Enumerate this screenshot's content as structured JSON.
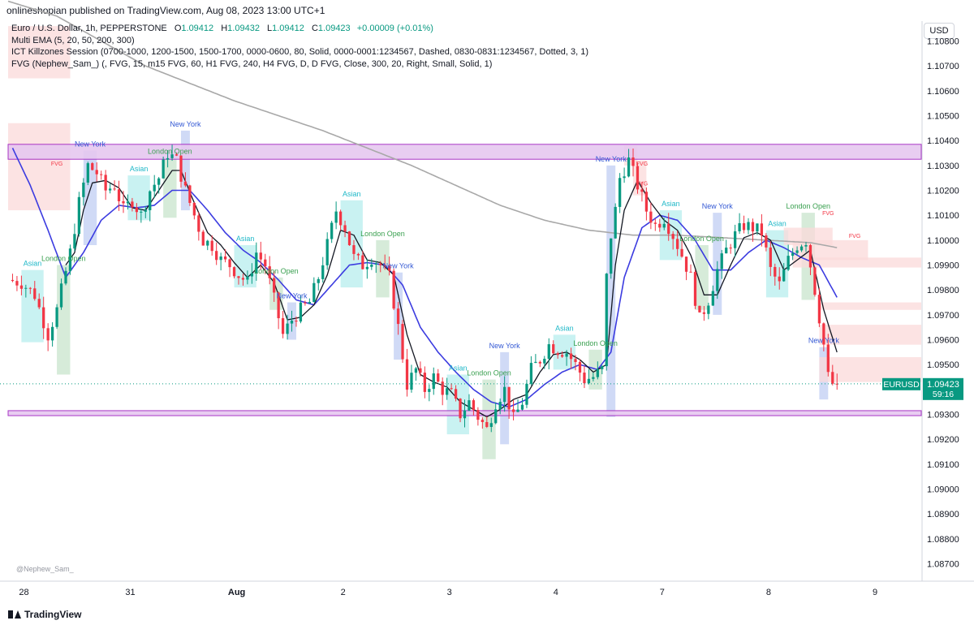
{
  "header": {
    "publisher": "onlineshopian published on TradingView.com, Aug 08, 2023 13:00 UTC+1",
    "currency": "USD"
  },
  "legend": {
    "symbol": "Euro / U.S. Dollar, 1h, PEPPERSTONE",
    "ohlc": [
      {
        "label": "O",
        "value": "1.09412"
      },
      {
        "label": "H",
        "value": "1.09432"
      },
      {
        "label": "L",
        "value": "1.09412"
      },
      {
        "label": "C",
        "value": "1.09423"
      }
    ],
    "change": "+0.00009 (+0.01%)",
    "indicators": [
      "Multi EMA (5, 20, 50, 200, 300)",
      "ICT Killzones Session (0700-1000, 1200-1500, 1500-1700, 0000-0600, 80, Solid, 0000-0001:1234567, Dashed, 0830-0831:1234567, Dotted, 3, 1)",
      "FVG (Nephew_Sam_) (, FVG, 15, m15 FVG, 60, H1 FVG, 240, H4 FVG, D, D FVG, Close, 300, 20, Right, Small, Solid, 1)"
    ]
  },
  "price_label": {
    "symbol": "EURUSD",
    "price": "1.09423",
    "countdown": "59:16"
  },
  "footer": {
    "brand": "TradingView",
    "watermark": "@Nephew_Sam_"
  },
  "colors": {
    "up": "#089981",
    "down": "#f23645",
    "ema_fast": "#131722",
    "ema_slow": "#3c3ce0",
    "ema_long": "#a8a8a8",
    "asian": "#bff0f0",
    "london": "#cfe8d2",
    "newyork": "#c8d4f5",
    "fvg": "#fbdada",
    "zone": "#e6c8f0",
    "zone_border": "#a020c0"
  },
  "chart_data": {
    "type": "candlestick",
    "symbol": "EURUSD",
    "timeframe": "1h",
    "y_axis": {
      "ticks": [
        "1.10800",
        "1.10700",
        "1.10600",
        "1.10500",
        "1.10400",
        "1.10300",
        "1.10200",
        "1.10100",
        "1.10000",
        "1.09900",
        "1.09800",
        "1.09700",
        "1.09600",
        "1.09500",
        "1.09400",
        "1.09300",
        "1.09200",
        "1.09100",
        "1.09000",
        "1.08900",
        "1.08800",
        "1.08700"
      ],
      "range": [
        1.0863,
        1.1088
      ]
    },
    "x_axis": {
      "ticks": [
        {
          "label": "28",
          "x": 0
        },
        {
          "label": "31",
          "x": 24
        },
        {
          "label": "Aug",
          "x": 48
        },
        {
          "label": "2",
          "x": 72
        },
        {
          "label": "3",
          "x": 96
        },
        {
          "label": "4",
          "x": 120
        },
        {
          "label": "7",
          "x": 144
        },
        {
          "label": "8",
          "x": 168
        },
        {
          "label": "9",
          "x": 192
        }
      ],
      "range": [
        -1,
        205
      ]
    },
    "path_keys": [
      [
        0,
        1.0984
      ],
      [
        3,
        1.0983
      ],
      [
        6,
        1.0978
      ],
      [
        9,
        1.0962
      ],
      [
        11,
        1.0972
      ],
      [
        14,
        1.0995
      ],
      [
        16,
        1.1015
      ],
      [
        18,
        1.103
      ],
      [
        20,
        1.1027
      ],
      [
        22,
        1.102
      ],
      [
        24,
        1.1022
      ],
      [
        26,
        1.1012
      ],
      [
        28,
        1.1016
      ],
      [
        30,
        1.101
      ],
      [
        32,
        1.102
      ],
      [
        34,
        1.1025
      ],
      [
        36,
        1.1035
      ],
      [
        38,
        1.1032
      ],
      [
        40,
        1.102
      ],
      [
        42,
        1.101
      ],
      [
        44,
        1.1
      ],
      [
        46,
        1.0998
      ],
      [
        48,
        1.0992
      ],
      [
        50,
        1.099
      ],
      [
        52,
        1.0986
      ],
      [
        54,
        1.0983
      ],
      [
        56,
        1.0995
      ],
      [
        58,
        1.099
      ],
      [
        60,
        1.0976
      ],
      [
        62,
        1.0962
      ],
      [
        64,
        1.0968
      ],
      [
        66,
        1.0972
      ],
      [
        68,
        1.0975
      ],
      [
        70,
        1.0985
      ],
      [
        72,
        1.0998
      ],
      [
        74,
        1.1012
      ],
      [
        76,
        1.1005
      ],
      [
        78,
        1.0993
      ],
      [
        80,
        1.099
      ],
      [
        82,
        1.0993
      ],
      [
        84,
        1.099
      ],
      [
        86,
        1.0985
      ],
      [
        88,
        1.0965
      ],
      [
        90,
        1.0942
      ],
      [
        92,
        1.0948
      ],
      [
        94,
        1.094
      ],
      [
        96,
        1.0945
      ],
      [
        98,
        1.094
      ],
      [
        100,
        1.0938
      ],
      [
        102,
        1.093
      ],
      [
        104,
        1.0935
      ],
      [
        106,
        1.0929
      ],
      [
        108,
        1.0924
      ],
      [
        110,
        1.0935
      ],
      [
        112,
        1.094
      ],
      [
        114,
        1.0928
      ],
      [
        116,
        1.0935
      ],
      [
        118,
        1.0948
      ],
      [
        120,
        1.0952
      ],
      [
        122,
        1.0958
      ],
      [
        124,
        1.0956
      ],
      [
        126,
        1.0955
      ],
      [
        128,
        1.095
      ],
      [
        130,
        1.0944
      ],
      [
        132,
        1.0945
      ],
      [
        134,
        1.0948
      ],
      [
        135,
        1.0985
      ],
      [
        136,
        1.1002
      ],
      [
        137,
        1.1012
      ],
      [
        138,
        1.1025
      ],
      [
        140,
        1.1032
      ],
      [
        142,
        1.1022
      ],
      [
        144,
        1.1012
      ],
      [
        146,
        1.1006
      ],
      [
        148,
        1.1009
      ],
      [
        150,
        1.1002
      ],
      [
        152,
        1.0994
      ],
      [
        154,
        1.0985
      ],
      [
        156,
        1.0968
      ],
      [
        158,
        1.0976
      ],
      [
        160,
        1.0988
      ],
      [
        162,
        1.0996
      ],
      [
        164,
        1.1002
      ],
      [
        166,
        1.1006
      ],
      [
        168,
        1.1005
      ],
      [
        170,
        1.1003
      ],
      [
        172,
        1.0988
      ],
      [
        174,
        1.0982
      ],
      [
        176,
        1.0992
      ],
      [
        178,
        1.0998
      ],
      [
        180,
        1.1
      ],
      [
        182,
        1.098
      ],
      [
        184,
        1.0958
      ],
      [
        185,
        1.0945
      ],
      [
        186,
        1.09423
      ]
    ],
    "ema_fast_keys": [
      [
        12,
        1.099
      ],
      [
        14,
        1.0995
      ],
      [
        16,
        1.1012
      ],
      [
        18,
        1.1023
      ],
      [
        21,
        1.1024
      ],
      [
        24,
        1.1021
      ],
      [
        27,
        1.1013
      ],
      [
        30,
        1.1012
      ],
      [
        33,
        1.102
      ],
      [
        36,
        1.1028
      ],
      [
        38,
        1.1028
      ],
      [
        41,
        1.1015
      ],
      [
        44,
        1.1003
      ],
      [
        47,
        1.0998
      ],
      [
        50,
        1.0991
      ],
      [
        53,
        1.0985
      ],
      [
        56,
        1.099
      ],
      [
        59,
        1.0983
      ],
      [
        62,
        1.0968
      ],
      [
        65,
        1.0969
      ],
      [
        68,
        1.0974
      ],
      [
        71,
        1.0986
      ],
      [
        74,
        1.1004
      ],
      [
        77,
        1.1002
      ],
      [
        80,
        1.0992
      ],
      [
        83,
        1.0991
      ],
      [
        86,
        1.0986
      ],
      [
        89,
        1.0962
      ],
      [
        92,
        1.0946
      ],
      [
        95,
        1.0943
      ],
      [
        98,
        1.0941
      ],
      [
        101,
        1.0935
      ],
      [
        104,
        1.0932
      ],
      [
        107,
        1.0929
      ],
      [
        110,
        1.0932
      ],
      [
        113,
        1.0936
      ],
      [
        116,
        1.0938
      ],
      [
        119,
        1.0947
      ],
      [
        122,
        1.0954
      ],
      [
        125,
        1.0955
      ],
      [
        128,
        1.0952
      ],
      [
        131,
        1.0947
      ],
      [
        134,
        1.095
      ],
      [
        136,
        1.099
      ],
      [
        138,
        1.1012
      ],
      [
        141,
        1.1024
      ],
      [
        144,
        1.1015
      ],
      [
        147,
        1.1008
      ],
      [
        150,
        1.1004
      ],
      [
        153,
        1.0994
      ],
      [
        156,
        1.0978
      ],
      [
        159,
        1.0978
      ],
      [
        162,
        1.099
      ],
      [
        165,
        1.1001
      ],
      [
        168,
        1.1003
      ],
      [
        171,
        1.1
      ],
      [
        174,
        1.0988
      ],
      [
        177,
        1.0992
      ],
      [
        180,
        1.0996
      ],
      [
        183,
        1.0972
      ],
      [
        186,
        1.0955
      ]
    ],
    "ema_slow_keys": [
      [
        0,
        1.1037
      ],
      [
        4,
        1.1022
      ],
      [
        8,
        1.1004
      ],
      [
        12,
        1.0985
      ],
      [
        16,
        1.0995
      ],
      [
        20,
        1.1008
      ],
      [
        24,
        1.1014
      ],
      [
        28,
        1.1013
      ],
      [
        32,
        1.1014
      ],
      [
        36,
        1.102
      ],
      [
        40,
        1.102
      ],
      [
        44,
        1.1012
      ],
      [
        48,
        1.1003
      ],
      [
        52,
        1.0996
      ],
      [
        56,
        1.0991
      ],
      [
        60,
        1.0984
      ],
      [
        64,
        1.0976
      ],
      [
        68,
        1.0974
      ],
      [
        72,
        1.0982
      ],
      [
        76,
        1.099
      ],
      [
        80,
        1.0991
      ],
      [
        84,
        1.099
      ],
      [
        88,
        1.0982
      ],
      [
        92,
        1.0965
      ],
      [
        96,
        1.0955
      ],
      [
        100,
        1.0947
      ],
      [
        104,
        1.094
      ],
      [
        108,
        1.0935
      ],
      [
        112,
        1.0933
      ],
      [
        116,
        1.0936
      ],
      [
        120,
        1.0942
      ],
      [
        124,
        1.0947
      ],
      [
        128,
        1.095
      ],
      [
        132,
        1.0948
      ],
      [
        135,
        1.0955
      ],
      [
        138,
        1.0985
      ],
      [
        142,
        1.1005
      ],
      [
        146,
        1.101
      ],
      [
        150,
        1.1008
      ],
      [
        154,
        1.1
      ],
      [
        158,
        1.0988
      ],
      [
        162,
        1.0988
      ],
      [
        166,
        1.0995
      ],
      [
        170,
        1.1
      ],
      [
        174,
        1.0997
      ],
      [
        178,
        1.0993
      ],
      [
        182,
        1.099
      ],
      [
        186,
        1.0977
      ]
    ],
    "ema_long_keys": [
      [
        -1,
        1.1096
      ],
      [
        10,
        1.109
      ],
      [
        20,
        1.108
      ],
      [
        30,
        1.107
      ],
      [
        40,
        1.1063
      ],
      [
        50,
        1.1056
      ],
      [
        60,
        1.105
      ],
      [
        70,
        1.1044
      ],
      [
        80,
        1.1037
      ],
      [
        90,
        1.103
      ],
      [
        100,
        1.1022
      ],
      [
        110,
        1.1014
      ],
      [
        120,
        1.1008
      ],
      [
        130,
        1.1004
      ],
      [
        140,
        1.1002
      ],
      [
        150,
        1.1002
      ],
      [
        160,
        1.1001
      ],
      [
        170,
        1.1
      ],
      [
        180,
        1.0999
      ],
      [
        186,
        1.0997
      ]
    ],
    "zones": [
      {
        "y_top": 1.10385,
        "y_bottom": 1.10325
      },
      {
        "y_top": 1.09315,
        "y_bottom": 1.09295
      }
    ],
    "fvg_boxes": [
      {
        "x1": -1,
        "x2": 13,
        "y_top": 1.1086,
        "y_bottom": 1.1065
      },
      {
        "x1": -1,
        "x2": 13,
        "y_top": 1.1047,
        "y_bottom": 1.1012
      },
      {
        "x1": 138,
        "x2": 141,
        "y_top": 1.1038,
        "y_bottom": 1.103
      },
      {
        "x1": 140,
        "x2": 143,
        "y_top": 1.1032,
        "y_bottom": 1.1018
      },
      {
        "x1": 174,
        "x2": 185,
        "y_top": 1.1005,
        "y_bottom": 1.0998
      },
      {
        "x1": 176,
        "x2": 193,
        "y_top": 1.1,
        "y_bottom": 1.0992
      },
      {
        "x1": 176,
        "x2": 205,
        "y_top": 1.0993,
        "y_bottom": 1.0989
      },
      {
        "x1": 182,
        "x2": 205,
        "y_top": 1.0975,
        "y_bottom": 1.0972
      },
      {
        "x1": 182,
        "x2": 205,
        "y_top": 1.0966,
        "y_bottom": 1.0958
      },
      {
        "x1": 182,
        "x2": 205,
        "y_top": 1.0953,
        "y_bottom": 1.0943
      }
    ],
    "sessions": [
      {
        "type": "asian",
        "name": "Asian",
        "x1": 2,
        "x2": 7,
        "y_top": 1.0988,
        "y_bottom": 1.0959
      },
      {
        "type": "london",
        "name": "London Open",
        "x1": 10,
        "x2": 13,
        "y_top": 1.099,
        "y_bottom": 1.0946
      },
      {
        "type": "newyork",
        "name": "New York",
        "x1": 16,
        "x2": 19,
        "y_top": 1.1036,
        "y_bottom": 1.0998
      },
      {
        "type": "asian",
        "name": "Asian",
        "x1": 26,
        "x2": 31,
        "y_top": 1.1026,
        "y_bottom": 1.1008
      },
      {
        "type": "london",
        "name": "London Open",
        "x1": 34,
        "x2": 37,
        "y_top": 1.1033,
        "y_bottom": 1.1009
      },
      {
        "type": "newyork",
        "name": "New York",
        "x1": 38,
        "x2": 40,
        "y_top": 1.1044,
        "y_bottom": 1.1012
      },
      {
        "type": "asian",
        "name": "Asian",
        "x1": 50,
        "x2": 55,
        "y_top": 1.0998,
        "y_bottom": 1.0981
      },
      {
        "type": "london",
        "name": "London Open",
        "x1": 58,
        "x2": 61,
        "y_top": 1.0985,
        "y_bottom": 1.0972
      },
      {
        "type": "newyork",
        "name": "New York",
        "x1": 62,
        "x2": 64,
        "y_top": 1.0975,
        "y_bottom": 1.096
      },
      {
        "type": "asian",
        "name": "Asian",
        "x1": 74,
        "x2": 79,
        "y_top": 1.1016,
        "y_bottom": 1.0981
      },
      {
        "type": "london",
        "name": "London Open",
        "x1": 82,
        "x2": 85,
        "y_top": 1.1,
        "y_bottom": 1.0977
      },
      {
        "type": "newyork",
        "name": "New York",
        "x1": 86,
        "x2": 88,
        "y_top": 1.0987,
        "y_bottom": 1.0952
      },
      {
        "type": "asian",
        "name": "Asian",
        "x1": 98,
        "x2": 103,
        "y_top": 1.0946,
        "y_bottom": 1.0922
      },
      {
        "type": "london",
        "name": "London Open",
        "x1": 106,
        "x2": 109,
        "y_top": 1.0944,
        "y_bottom": 1.0912
      },
      {
        "type": "newyork",
        "name": "New York",
        "x1": 110,
        "x2": 112,
        "y_top": 1.0955,
        "y_bottom": 1.0918
      },
      {
        "type": "asian",
        "name": "Asian",
        "x1": 122,
        "x2": 127,
        "y_top": 1.0962,
        "y_bottom": 1.0948
      },
      {
        "type": "london",
        "name": "London Open",
        "x1": 130,
        "x2": 133,
        "y_top": 1.0956,
        "y_bottom": 1.094
      },
      {
        "type": "newyork",
        "name": "New York",
        "x1": 134,
        "x2": 136,
        "y_top": 1.103,
        "y_bottom": 1.0929
      },
      {
        "type": "asian",
        "name": "Asian",
        "x1": 146,
        "x2": 151,
        "y_top": 1.1012,
        "y_bottom": 1.0992
      },
      {
        "type": "london",
        "name": "London Open",
        "x1": 154,
        "x2": 157,
        "y_top": 1.0998,
        "y_bottom": 1.0972
      },
      {
        "type": "newyork",
        "name": "New York",
        "x1": 158,
        "x2": 160,
        "y_top": 1.1011,
        "y_bottom": 1.097
      },
      {
        "type": "asian",
        "name": "Asian",
        "x1": 170,
        "x2": 175,
        "y_top": 1.1004,
        "y_bottom": 1.0977
      },
      {
        "type": "london",
        "name": "London Open",
        "x1": 178,
        "x2": 181,
        "y_top": 1.1011,
        "y_bottom": 1.0976
      },
      {
        "type": "newyork",
        "name": "New York",
        "x1": 182,
        "x2": 184,
        "y_top": 1.0957,
        "y_bottom": 1.0936
      }
    ],
    "fvg_labels": [
      {
        "text": "FVG",
        "x": 10,
        "y": 1.103
      },
      {
        "text": "FVG",
        "x": 142,
        "y": 1.103
      },
      {
        "text": "FVG",
        "x": 142,
        "y": 1.1022
      },
      {
        "text": "FVG",
        "x": 184,
        "y": 1.101
      },
      {
        "text": "FVG",
        "x": 190,
        "y": 1.1001
      }
    ],
    "last_price": 1.09423
  }
}
